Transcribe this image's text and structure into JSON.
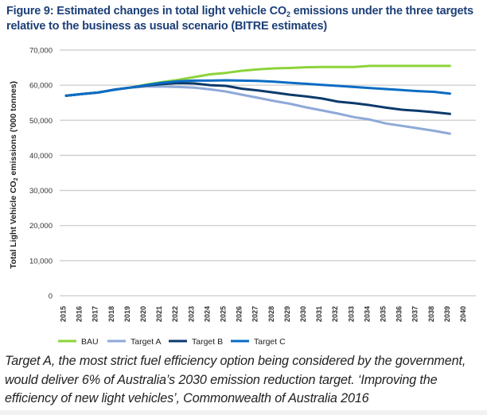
{
  "figure": {
    "title_part1": "Figure 9: Estimated changes in total light vehicle CO",
    "title_sub": "2",
    "title_part2": " emissions under the three targets relative to the business as usual scenario (BITRE estimates)"
  },
  "caption": {
    "text": "Target A, the most strict fuel efficiency option being considered by the government, would deliver 6% of Australia’s 2030 emission reduction target. ‘Improving the efficiency of new light vehicles’, Commonwealth of Australia 2016"
  },
  "chart_data": {
    "type": "line",
    "title": "Figure 9: Estimated changes in total light vehicle CO2 emissions under the three targets relative to the business as usual scenario (BITRE estimates)",
    "xlabel": "",
    "ylabel": "Total Light Vehicle CO2 emissions ('000 tonnes)",
    "ylabel_main": "Total Light Vehicle CO",
    "ylabel_sub": "2",
    "ylabel_rest": " emissions ('000 tonnes)",
    "ylim": [
      0,
      70000
    ],
    "y_ticks": [
      0,
      10000,
      20000,
      30000,
      40000,
      50000,
      60000,
      70000
    ],
    "y_tick_labels": [
      "0",
      "10,000",
      "20,000",
      "30,000",
      "40,000",
      "50,000",
      "60,000",
      "70,000"
    ],
    "grid": "horizontal",
    "legend_position": "bottom",
    "x": [
      "2015",
      "2016",
      "2017",
      "2018",
      "2019",
      "2020",
      "2021",
      "2022",
      "2023",
      "2024",
      "2025",
      "2026",
      "2027",
      "2028",
      "2029",
      "2030",
      "2031",
      "2032",
      "2033",
      "2034",
      "2035",
      "2036",
      "2037",
      "2038",
      "2039",
      "2040"
    ],
    "series": [
      {
        "name": "BAU",
        "color": "#8dd33a",
        "values": [
          57000,
          57500,
          57900,
          58700,
          59300,
          60200,
          60900,
          61500,
          62300,
          63100,
          63500,
          64100,
          64500,
          64800,
          64900,
          65100,
          65200,
          65200,
          65200,
          65500,
          65500,
          65500,
          65500,
          65500,
          65500,
          null
        ]
      },
      {
        "name": "Target A",
        "color": "#8ea9d8",
        "values": [
          57000,
          57500,
          57900,
          58700,
          59300,
          59600,
          59600,
          59500,
          59300,
          58800,
          58200,
          57300,
          56400,
          55500,
          54700,
          53700,
          52800,
          51900,
          50900,
          50200,
          49100,
          48400,
          47700,
          47000,
          46200,
          null
        ]
      },
      {
        "name": "Target B",
        "color": "#0b3a6b",
        "values": [
          57000,
          57500,
          57900,
          58700,
          59300,
          59900,
          60300,
          60600,
          60500,
          60000,
          59800,
          59000,
          58500,
          57900,
          57300,
          56800,
          56200,
          55300,
          54900,
          54300,
          53600,
          53000,
          52700,
          52300,
          51800,
          null
        ]
      },
      {
        "name": "Target C",
        "color": "#0a6cc4",
        "values": [
          57000,
          57500,
          57900,
          58700,
          59300,
          60000,
          60700,
          61100,
          61300,
          61300,
          61400,
          61300,
          61200,
          61000,
          60700,
          60400,
          60100,
          59800,
          59500,
          59200,
          58900,
          58600,
          58300,
          58100,
          57600,
          null
        ]
      }
    ]
  },
  "colors": {
    "title": "#1c3f77",
    "gridline": "#cccccc",
    "axis_text": "#333333"
  }
}
